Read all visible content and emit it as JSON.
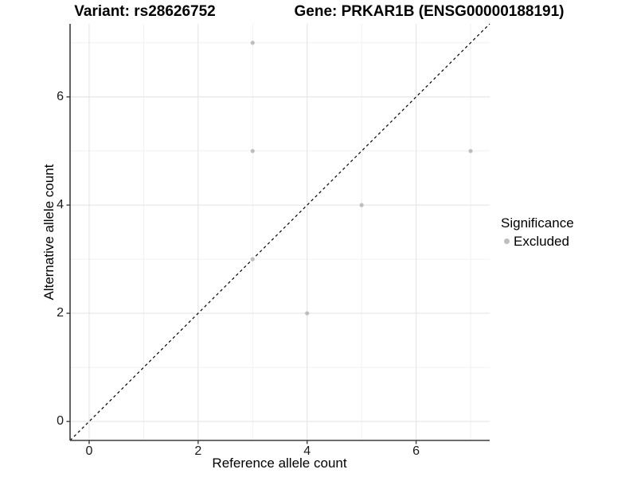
{
  "chart_data": {
    "type": "scatter",
    "title_left": "Variant: rs28626752",
    "title_right": "Gene: PRKAR1B (ENSG00000188191)",
    "xlabel": "Reference allele count",
    "ylabel": "Alternative allele count",
    "xlim": [
      -0.35,
      7.35
    ],
    "ylim": [
      -0.35,
      7.35
    ],
    "x_ticks": [
      0,
      2,
      4,
      6
    ],
    "y_ticks": [
      0,
      2,
      4,
      6
    ],
    "x_minor_gridlines": [
      1,
      3,
      5,
      7
    ],
    "y_minor_gridlines": [
      1,
      3,
      5,
      7
    ],
    "grid": true,
    "legend_position": "right",
    "series": [
      {
        "name": "Excluded",
        "points": [
          [
            3,
            7
          ],
          [
            3,
            5
          ],
          [
            3,
            3
          ],
          [
            5,
            4
          ],
          [
            4,
            2
          ],
          [
            7,
            5
          ]
        ],
        "color": "#bebebe"
      }
    ],
    "reference_line": {
      "kind": "identity",
      "style": "dashed",
      "color": "#000000"
    },
    "legend": {
      "title": "Significance",
      "items": [
        {
          "label": "Excluded",
          "color": "#bebebe"
        }
      ]
    }
  },
  "colors": {
    "background": "#ffffff",
    "point": "#bebebe",
    "grid_major": "#e6e6e6",
    "grid_minor": "#f1f1f1",
    "axis_line": "#3d3d3d",
    "reference_line": "#000000",
    "text": "#000000"
  }
}
